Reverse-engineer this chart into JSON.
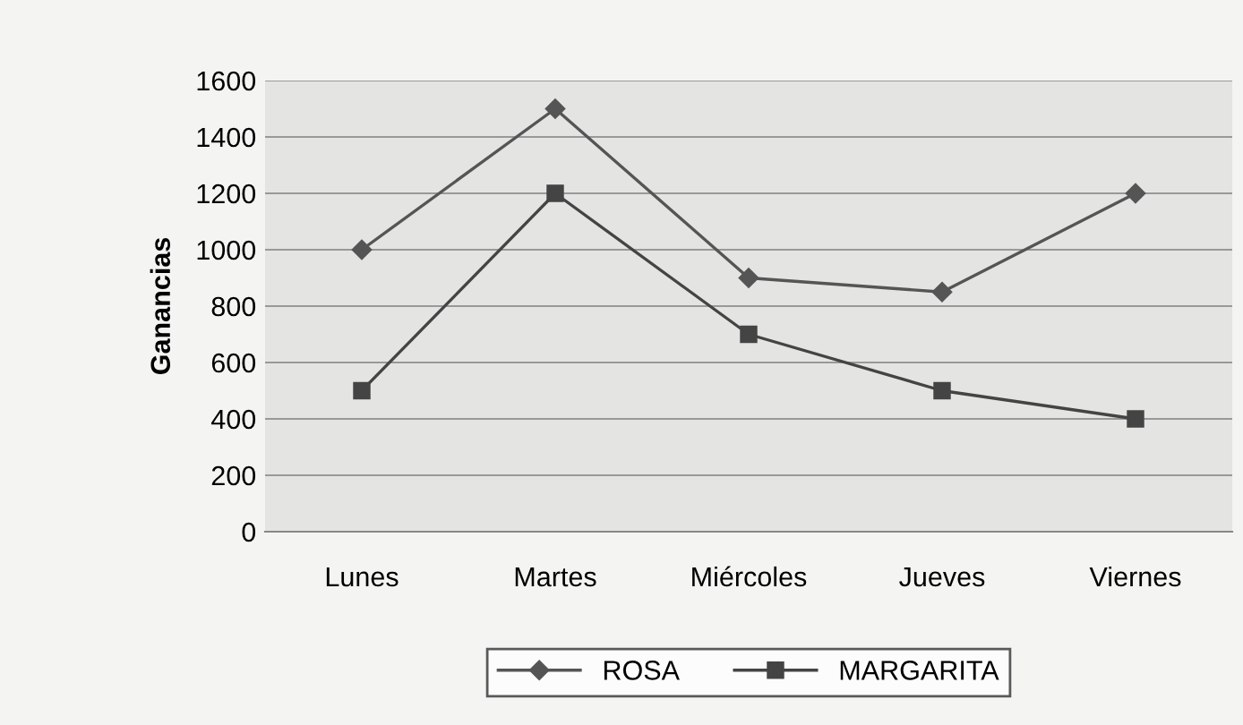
{
  "chart_data": {
    "type": "line",
    "ylabel": "Ganancias",
    "categories": [
      "Lunes",
      "Martes",
      "Miércoles",
      "Jueves",
      "Viernes"
    ],
    "series": [
      {
        "name": "ROSA",
        "color": "#555555",
        "marker": "diamond",
        "values": [
          1000,
          1500,
          900,
          850,
          1200
        ]
      },
      {
        "name": "MARGARITA",
        "color": "#444444",
        "marker": "square",
        "values": [
          500,
          1200,
          700,
          500,
          400
        ]
      }
    ],
    "ylim": [
      0,
      1600
    ],
    "yticks": [
      0,
      200,
      400,
      600,
      800,
      1000,
      1200,
      1400,
      1600
    ],
    "grid": "y",
    "legend": "bottom",
    "line_style": "solid"
  }
}
